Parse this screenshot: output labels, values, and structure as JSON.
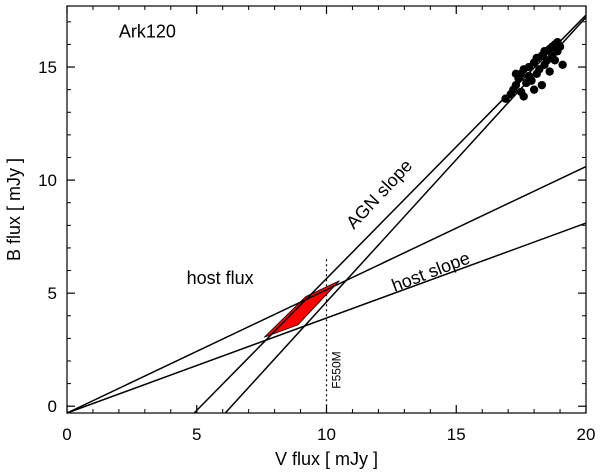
{
  "chart_data": {
    "type": "scatter",
    "title": "Ark120",
    "xlabel": "V flux  [ mJy ]",
    "ylabel": "B flux  [ mJy ]",
    "xlim": [
      0,
      20
    ],
    "ylim": [
      -0.3,
      17.7
    ],
    "xticks": [
      0,
      5,
      10,
      15,
      20
    ],
    "yticks": [
      0,
      5,
      10,
      15
    ],
    "xtick_labels": [
      "0",
      "5",
      "10",
      "15",
      "20"
    ],
    "ytick_labels": [
      "0",
      "5",
      "10",
      "15"
    ],
    "grid": false,
    "legend": "none",
    "series": [
      {
        "points": [
          [
            16.9,
            13.6
          ],
          [
            17.1,
            13.8
          ],
          [
            17.2,
            14.0
          ],
          [
            17.3,
            14.2
          ],
          [
            17.4,
            14.5
          ],
          [
            17.5,
            14.7
          ],
          [
            17.5,
            13.9
          ],
          [
            17.6,
            14.9
          ],
          [
            17.7,
            14.3
          ],
          [
            17.8,
            14.6
          ],
          [
            17.8,
            15.0
          ],
          [
            17.9,
            14.4
          ],
          [
            18.0,
            15.2
          ],
          [
            18.1,
            14.7
          ],
          [
            18.1,
            15.4
          ],
          [
            18.2,
            14.9
          ],
          [
            18.3,
            15.5
          ],
          [
            18.4,
            15.1
          ],
          [
            18.4,
            15.7
          ],
          [
            18.5,
            15.3
          ],
          [
            18.6,
            15.8
          ],
          [
            18.6,
            14.8
          ],
          [
            18.7,
            15.9
          ],
          [
            18.7,
            15.5
          ],
          [
            18.8,
            16.0
          ],
          [
            18.8,
            15.3
          ],
          [
            18.9,
            16.1
          ],
          [
            18.9,
            15.7
          ],
          [
            19.0,
            15.9
          ],
          [
            19.1,
            15.1
          ],
          [
            17.6,
            13.7
          ],
          [
            18.3,
            14.2
          ],
          [
            17.3,
            14.7
          ],
          [
            18.0,
            14.0
          ]
        ]
      }
    ],
    "lines": [
      {
        "role": "AGN slope line 1",
        "from": [
          4.9,
          -0.3
        ],
        "to": [
          20.0,
          17.3
        ]
      },
      {
        "role": "AGN slope line 2",
        "from": [
          6.1,
          -0.3
        ],
        "to": [
          20.0,
          17.2
        ]
      },
      {
        "role": "host slope line 1",
        "from": [
          0.0,
          -0.3
        ],
        "to": [
          20.0,
          10.6
        ]
      },
      {
        "role": "host slope line 2",
        "from": [
          0.0,
          -0.3
        ],
        "to": [
          20.0,
          8.1
        ]
      }
    ],
    "host_flux_region": {
      "color": "#ff0000",
      "vertices": [
        [
          7.6,
          3.05
        ],
        [
          8.9,
          3.6
        ],
        [
          10.5,
          5.55
        ],
        [
          9.2,
          4.85
        ]
      ]
    },
    "vertical_marker": {
      "x": 10.0,
      "label": "F550M",
      "style": "dotted"
    },
    "annotations": [
      {
        "text": "Ark120",
        "x": 2.0,
        "y": 16.3
      },
      {
        "text": "AGN slope",
        "x": 12.2,
        "y": 9.2,
        "rotate": -47
      },
      {
        "text": "host slope",
        "x": 14.1,
        "y": 5.7,
        "rotate": -21
      },
      {
        "text": "host flux",
        "x": 5.9,
        "y": 5.4
      }
    ]
  }
}
